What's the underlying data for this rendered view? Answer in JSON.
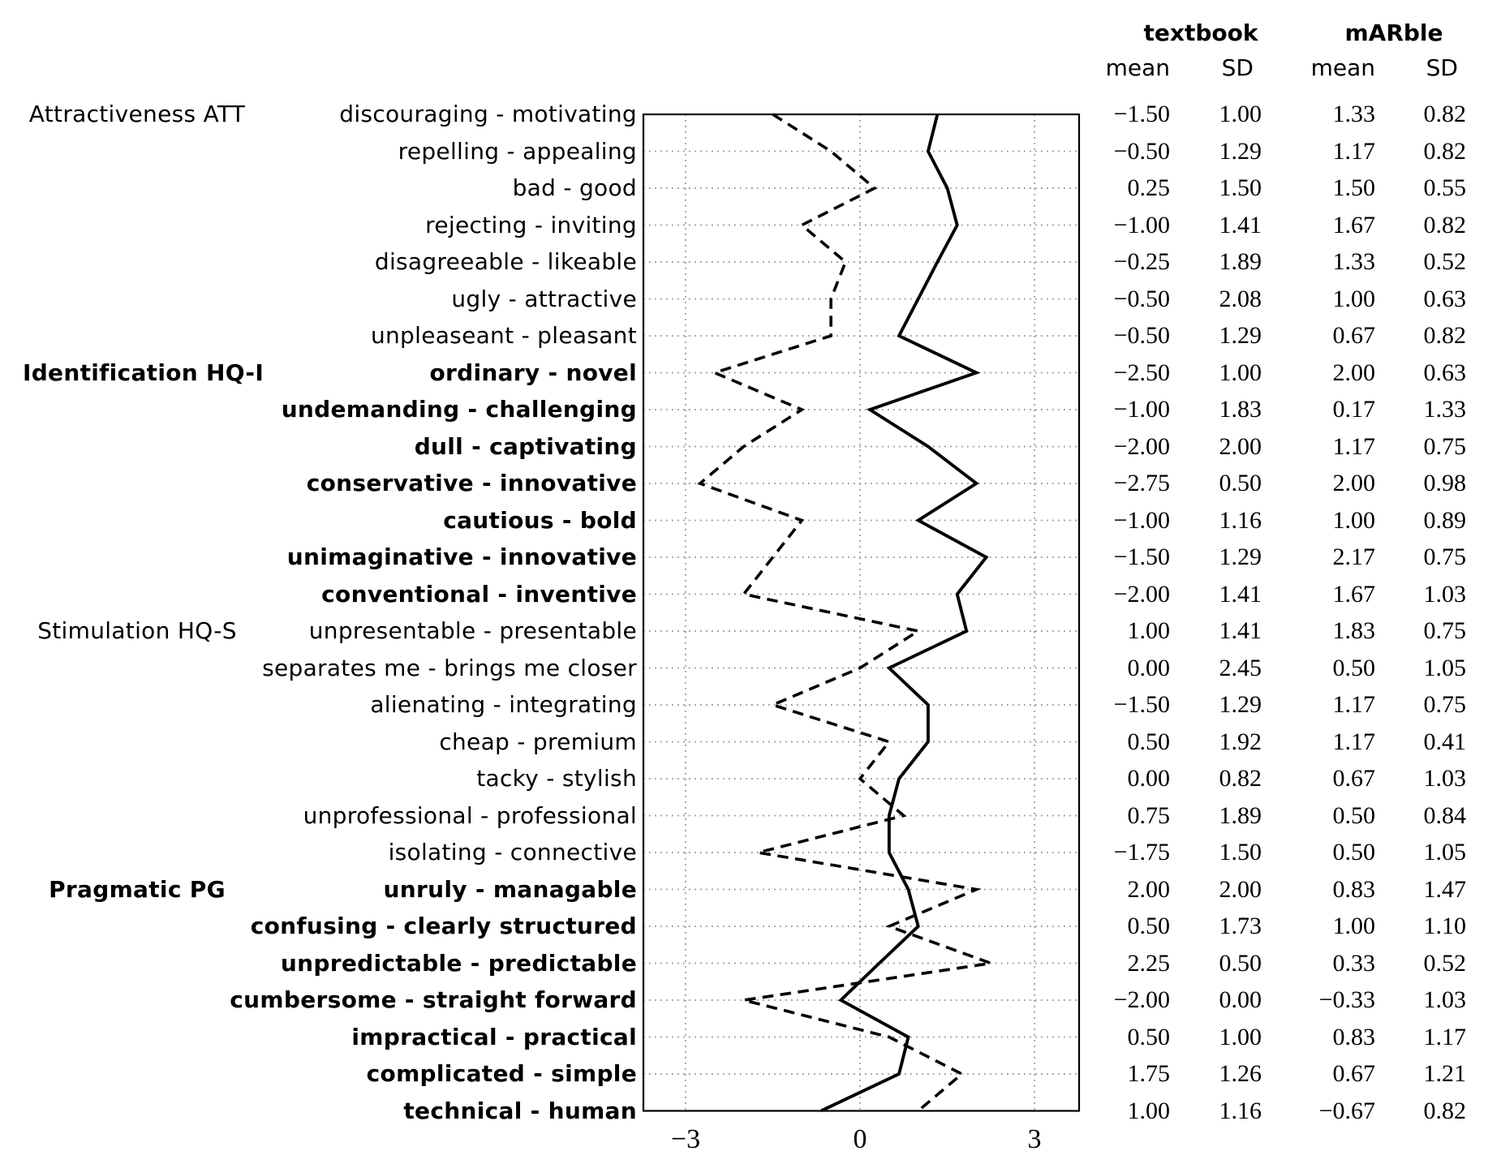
{
  "table": {
    "conditions": [
      {
        "label": "textbook"
      },
      {
        "label": "mARble"
      }
    ],
    "sub_headers": [
      "mean",
      "SD",
      "mean",
      "SD"
    ]
  },
  "chart_data": {
    "type": "line",
    "title": "",
    "xlabel": "",
    "ylabel": "",
    "orientation": "vertical item axis, horizontal value axis",
    "xlim": [
      -3.73,
      3.77
    ],
    "x_ticks": [
      -3,
      0,
      3
    ],
    "x_tick_labels": [
      "−3",
      "0",
      "3"
    ],
    "grid": "dotted horizontal line per item row, dotted vertical lines at x ticks",
    "legend": "none",
    "line_color": "#000000",
    "grid_color": "#8f8f8f",
    "categories": [
      "discouraging - motivating",
      "repelling - appealing",
      "bad - good",
      "rejecting - inviting",
      "disagreeable - likeable",
      "ugly - attractive",
      "unpleaseant - pleasant",
      "ordinary - novel",
      "undemanding - challenging",
      "dull - captivating",
      "conservative - innovative",
      "cautious - bold",
      "unimaginative - innovative",
      "conventional - inventive",
      "unpresentable - presentable",
      "separates me - brings me closer",
      "alienating - integrating",
      "cheap - premium",
      "tacky - stylish",
      "unprofessional - professional",
      "isolating - connective",
      "unruly - managable",
      "confusing - clearly structured",
      "unpredictable - predictable",
      "cumbersome - straight forward",
      "impractical - practical",
      "complicated - simple",
      "technical - human"
    ],
    "bold_rows": [
      8,
      9,
      10,
      11,
      12,
      13,
      14,
      22,
      23,
      24,
      25,
      26,
      27,
      28
    ],
    "groups": [
      {
        "label": "Attractiveness ATT",
        "row": 1,
        "bold": false
      },
      {
        "label": "Identification HQ-I",
        "row": 8,
        "bold": true
      },
      {
        "label": "Stimulation HQ-S",
        "row": 15,
        "bold": false
      },
      {
        "label": "Pragmatic PG",
        "row": 22,
        "bold": true
      }
    ],
    "series": [
      {
        "name": "textbook",
        "line_style": "dashed",
        "means": [
          -1.5,
          -0.5,
          0.25,
          -1.0,
          -0.25,
          -0.5,
          -0.5,
          -2.5,
          -1.0,
          -2.0,
          -2.75,
          -1.0,
          -1.5,
          -2.0,
          1.0,
          0.0,
          -1.5,
          0.5,
          0.0,
          0.75,
          -1.75,
          2.0,
          0.5,
          2.25,
          -2.0,
          0.5,
          1.75,
          1.0
        ],
        "sds": [
          1.0,
          1.29,
          1.5,
          1.41,
          1.89,
          2.08,
          1.29,
          1.0,
          1.83,
          2.0,
          0.5,
          1.16,
          1.29,
          1.41,
          1.41,
          2.45,
          1.29,
          1.92,
          0.82,
          1.89,
          1.5,
          2.0,
          1.73,
          0.5,
          0.0,
          1.0,
          1.26,
          1.16
        ]
      },
      {
        "name": "mARble",
        "line_style": "solid",
        "means": [
          1.33,
          1.17,
          1.5,
          1.67,
          1.33,
          1.0,
          0.67,
          2.0,
          0.17,
          1.17,
          2.0,
          1.0,
          2.17,
          1.67,
          1.83,
          0.5,
          1.17,
          1.17,
          0.67,
          0.5,
          0.5,
          0.83,
          1.0,
          0.33,
          -0.33,
          0.83,
          0.67,
          -0.67
        ],
        "sds": [
          0.82,
          0.82,
          0.55,
          0.82,
          0.52,
          0.63,
          0.82,
          0.63,
          1.33,
          0.75,
          0.98,
          0.89,
          0.75,
          1.03,
          0.75,
          1.05,
          0.75,
          0.41,
          1.03,
          0.84,
          1.05,
          1.47,
          1.1,
          0.52,
          1.03,
          1.17,
          1.21,
          0.82
        ]
      }
    ]
  }
}
